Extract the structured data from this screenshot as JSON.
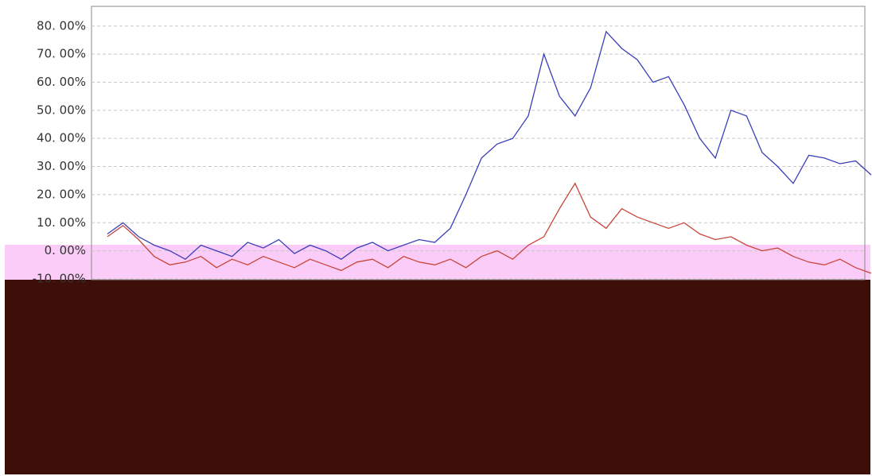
{
  "chart_data": {
    "type": "line",
    "ylim": [
      -25,
      87
    ],
    "yticks": [
      {
        "value": -10,
        "label": "-10. 00%"
      },
      {
        "value": 0,
        "label": "0. 00%"
      },
      {
        "value": 10,
        "label": "10. 00%"
      },
      {
        "value": 20,
        "label": "20. 00%"
      },
      {
        "value": 30,
        "label": "30. 00%"
      },
      {
        "value": 40,
        "label": "40. 00%"
      },
      {
        "value": 50,
        "label": "50. 00%"
      },
      {
        "value": 60,
        "label": "60. 00%"
      },
      {
        "value": 70,
        "label": "70. 00%"
      },
      {
        "value": 80,
        "label": "80. 00%"
      }
    ],
    "grid": true,
    "series": [
      {
        "color": "#3a3fb8",
        "values": [
          6,
          10,
          5,
          2,
          0,
          -3,
          2,
          0,
          -2,
          3,
          1,
          4,
          -1,
          2,
          0,
          -3,
          1,
          3,
          0,
          2,
          4,
          3,
          8,
          20,
          33,
          38,
          40,
          48,
          70,
          55,
          48,
          58,
          78,
          72,
          68,
          60,
          62,
          52,
          40,
          33,
          50,
          48,
          35,
          30,
          24,
          34,
          33,
          31,
          32,
          27
        ]
      },
      {
        "color": "#c8453a",
        "values": [
          5,
          9,
          4,
          -2,
          -5,
          -4,
          -2,
          -6,
          -3,
          -5,
          -2,
          -4,
          -6,
          -3,
          -5,
          -7,
          -4,
          -3,
          -6,
          -2,
          -4,
          -5,
          -3,
          -6,
          -2,
          0,
          -3,
          2,
          5,
          15,
          24,
          12,
          8,
          15,
          12,
          10,
          8,
          10,
          6,
          4,
          5,
          2,
          0,
          1,
          -2,
          -4,
          -5,
          -3,
          -6,
          -8
        ]
      }
    ]
  }
}
